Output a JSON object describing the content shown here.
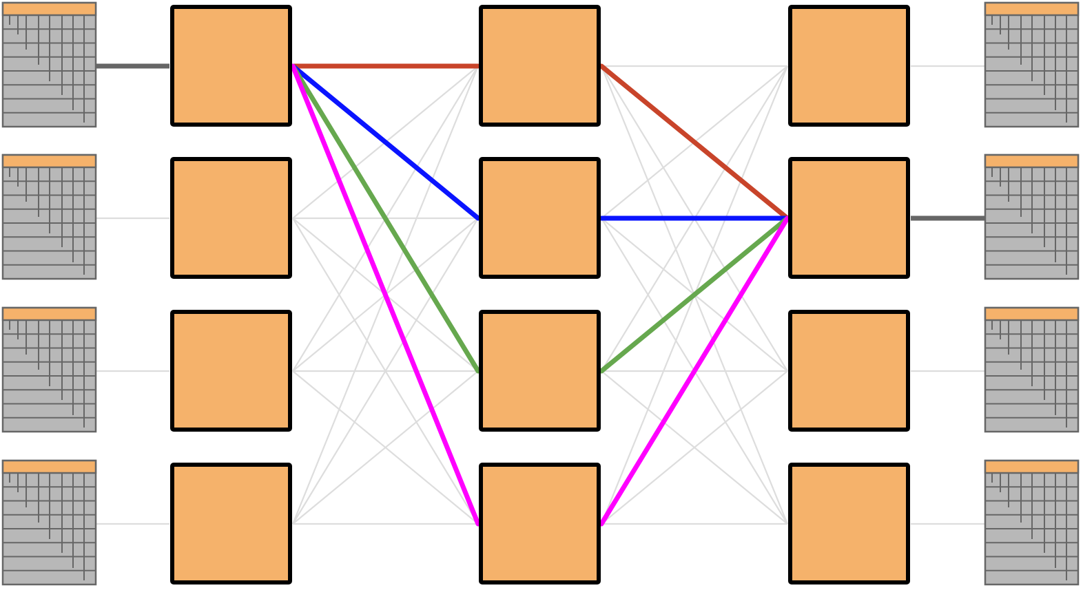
{
  "colors": {
    "background": "#ffffff",
    "switch_fill": "#f5b26b",
    "switch_stroke": "#000000",
    "rack_header": "#f5b26b",
    "rack_body": "#b8b8b8",
    "rack_lines": "#666666",
    "mesh_link": "#dddddd",
    "host_link_active": "#666666",
    "path_red": "#c8442a",
    "path_blue": "#0a14ff",
    "path_green": "#66a84e",
    "path_magenta": "#ff00ff"
  },
  "topology": {
    "host_racks_left": 4,
    "host_racks_right": 4,
    "switch_columns": 3,
    "switches_per_column": 4,
    "full_mesh_between_columns": true,
    "active_source_rack": 0,
    "active_destination_rack": 1,
    "paths": [
      {
        "color": "path_red",
        "hops": [
          0,
          0,
          1
        ]
      },
      {
        "color": "path_blue",
        "hops": [
          0,
          1,
          1
        ]
      },
      {
        "color": "path_green",
        "hops": [
          0,
          2,
          1
        ]
      },
      {
        "color": "path_magenta",
        "hops": [
          0,
          3,
          1
        ]
      }
    ]
  }
}
